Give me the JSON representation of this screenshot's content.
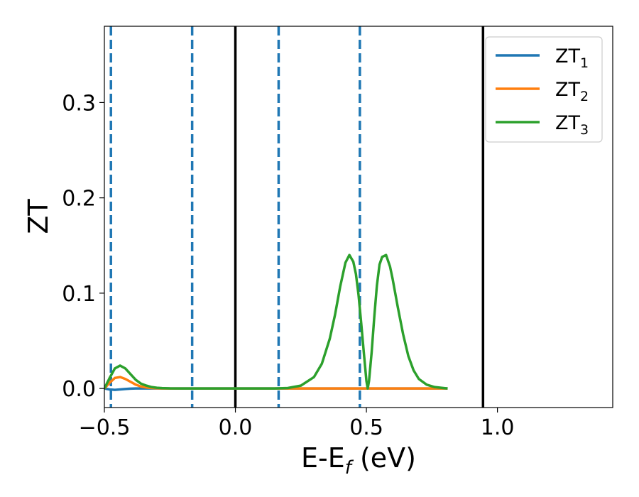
{
  "chart_data": {
    "type": "line",
    "title": "",
    "xlabel": "E-E",
    "xlabel_sub": "f",
    "xlabel_unit": " (eV)",
    "ylabel": "ZT",
    "xlim": [
      -0.5,
      1.44
    ],
    "ylim": [
      -0.02,
      0.38
    ],
    "x_ticks": [
      -0.5,
      0.0,
      0.5,
      1.0
    ],
    "x_tick_labels": [
      "−0.5",
      "0.0",
      "0.5",
      "1.0"
    ],
    "y_ticks": [
      0.0,
      0.1,
      0.2,
      0.3
    ],
    "y_tick_labels": [
      "0.0",
      "0.1",
      "0.2",
      "0.3"
    ],
    "grid": false,
    "legend_position": "top-right",
    "vlines_solid": [
      0.0,
      0.945
    ],
    "vlines_dashed": [
      -0.475,
      -0.165,
      0.165,
      0.475
    ],
    "vline_solid_color": "#000000",
    "vline_dashed_color": "#1f77b4",
    "series": [
      {
        "name": "ZT",
        "sub": "1",
        "color": "#1f77b4",
        "x": [
          -0.5,
          -0.48,
          -0.46,
          -0.44,
          -0.42,
          -0.4,
          -0.38,
          -0.35,
          -0.3,
          -0.2,
          -0.1,
          0.0,
          0.1,
          0.2,
          0.3,
          0.4,
          0.5,
          0.6,
          0.7,
          0.81
        ],
        "y": [
          0.0,
          -0.001,
          -0.0015,
          -0.001,
          -0.0005,
          -0.0002,
          0.0,
          0.0,
          0.0,
          0.0,
          0.0,
          0.0,
          0.0,
          0.0,
          0.0,
          0.0,
          0.0,
          0.0,
          0.0,
          0.0
        ]
      },
      {
        "name": "ZT",
        "sub": "2",
        "color": "#ff7f0e",
        "x": [
          -0.5,
          -0.48,
          -0.46,
          -0.44,
          -0.42,
          -0.4,
          -0.38,
          -0.36,
          -0.34,
          -0.32,
          -0.3,
          -0.27,
          -0.25,
          -0.2,
          -0.1,
          0.0,
          0.1,
          0.2,
          0.3,
          0.4,
          0.5,
          0.6,
          0.7,
          0.81
        ],
        "y": [
          0.0,
          0.006,
          0.011,
          0.012,
          0.01,
          0.007,
          0.004,
          0.002,
          0.001,
          0.0005,
          0.0002,
          0.0,
          0.0,
          0.0,
          0.0,
          0.0,
          0.0,
          0.0,
          0.0,
          0.0,
          0.0,
          0.0,
          0.0,
          0.0
        ]
      },
      {
        "name": "ZT",
        "sub": "3",
        "color": "#2ca02c",
        "x": [
          -0.5,
          -0.48,
          -0.46,
          -0.44,
          -0.42,
          -0.4,
          -0.38,
          -0.36,
          -0.34,
          -0.32,
          -0.3,
          -0.28,
          -0.25,
          -0.2,
          -0.1,
          0.0,
          0.1,
          0.15,
          0.2,
          0.25,
          0.3,
          0.33,
          0.36,
          0.38,
          0.4,
          0.42,
          0.435,
          0.45,
          0.46,
          0.47,
          0.48,
          0.49,
          0.5,
          0.505,
          0.51,
          0.52,
          0.53,
          0.54,
          0.55,
          0.56,
          0.575,
          0.59,
          0.6,
          0.62,
          0.64,
          0.66,
          0.68,
          0.7,
          0.73,
          0.76,
          0.8,
          0.81
        ],
        "y": [
          0.0,
          0.011,
          0.021,
          0.024,
          0.021,
          0.015,
          0.009,
          0.005,
          0.003,
          0.0015,
          0.0008,
          0.0004,
          0.0001,
          0.0,
          0.0,
          0.0,
          0.0,
          0.0,
          0.0005,
          0.003,
          0.012,
          0.026,
          0.052,
          0.077,
          0.107,
          0.132,
          0.14,
          0.133,
          0.12,
          0.098,
          0.069,
          0.038,
          0.008,
          0.0,
          0.008,
          0.038,
          0.075,
          0.108,
          0.13,
          0.138,
          0.14,
          0.128,
          0.115,
          0.085,
          0.057,
          0.034,
          0.019,
          0.01,
          0.004,
          0.0015,
          0.0003,
          0.0
        ]
      }
    ]
  }
}
